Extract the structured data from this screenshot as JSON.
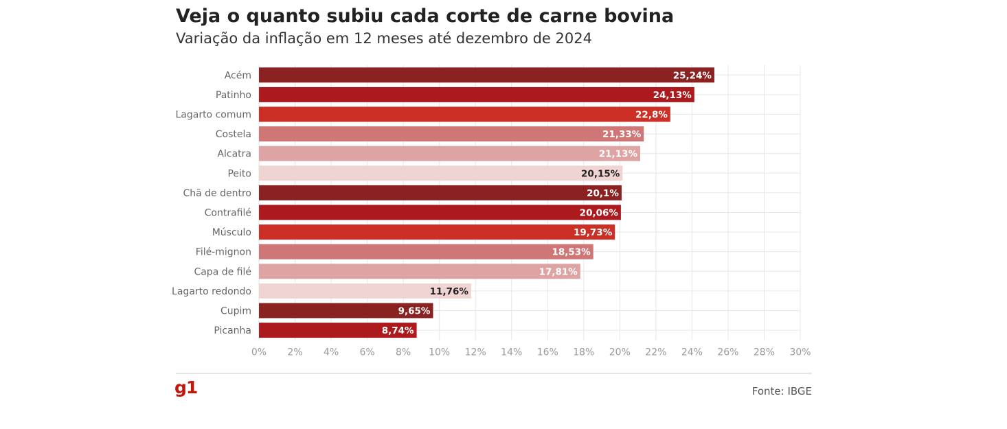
{
  "header": {
    "title": "Veja o quanto subiu cada corte de carne bovina",
    "subtitle": "Variação da inflação em 12 meses até dezembro de 2024"
  },
  "footer": {
    "logo": "g1",
    "source": "Fonte: IBGE"
  },
  "colors": {
    "palette": [
      "#8b2222",
      "#ad1a1d",
      "#cb2f26",
      "#cf7676",
      "#dea3a3",
      "#f0d4d4"
    ],
    "grid": "#e6e6e6",
    "tick_text": "#999999",
    "category_text": "#666666",
    "label_light": "#ffffff",
    "label_dark": "#222222"
  },
  "chart_data": {
    "type": "bar",
    "orientation": "horizontal",
    "categories": [
      "Acém",
      "Patinho",
      "Lagarto comum",
      "Costela",
      "Alcatra",
      "Peito",
      "Chã de dentro",
      "Contrafilé",
      "Músculo",
      "Filé-mignon",
      "Capa de filé",
      "Lagarto redondo",
      "Cupim",
      "Picanha"
    ],
    "values": [
      25.24,
      24.13,
      22.8,
      21.33,
      21.13,
      20.15,
      20.1,
      20.06,
      19.73,
      18.53,
      17.81,
      11.76,
      9.65,
      8.74
    ],
    "labels": [
      "25,24%",
      "24,13%",
      "22,8%",
      "21,33%",
      "21,13%",
      "20,15%",
      "20,1%",
      "20,06%",
      "19,73%",
      "18,53%",
      "17,81%",
      "11,76%",
      "9,65%",
      "8,74%"
    ],
    "xlim": [
      0,
      30
    ],
    "xticks": [
      "0%",
      "2%",
      "4%",
      "6%",
      "8%",
      "10%",
      "12%",
      "14%",
      "16%",
      "18%",
      "20%",
      "22%",
      "24%",
      "26%",
      "28%",
      "30%"
    ],
    "grid": true,
    "xlabel": "",
    "ylabel": ""
  }
}
